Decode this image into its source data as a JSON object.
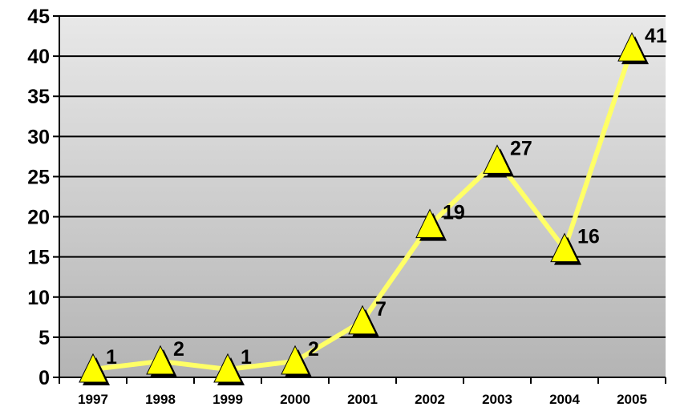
{
  "chart_data": {
    "type": "line",
    "categories": [
      "1997",
      "1998",
      "1999",
      "2000",
      "2001",
      "2002",
      "2003",
      "2004",
      "2005"
    ],
    "series": [
      {
        "values": [
          1,
          2,
          1,
          2,
          7,
          19,
          27,
          16,
          41
        ]
      }
    ],
    "ylim": [
      0,
      45
    ],
    "yticks": [
      0,
      5,
      10,
      15,
      20,
      25,
      30,
      35,
      40,
      45
    ],
    "grid": true,
    "legend": "none",
    "marker": "triangle",
    "colors": {
      "line": "#ffff66",
      "marker_fill": "#ffff00",
      "marker_shadow": "#000000",
      "plot_bg_top": "#e8e8e8",
      "plot_bg_bottom": "#b4b4b4",
      "grid": "#000000"
    }
  }
}
